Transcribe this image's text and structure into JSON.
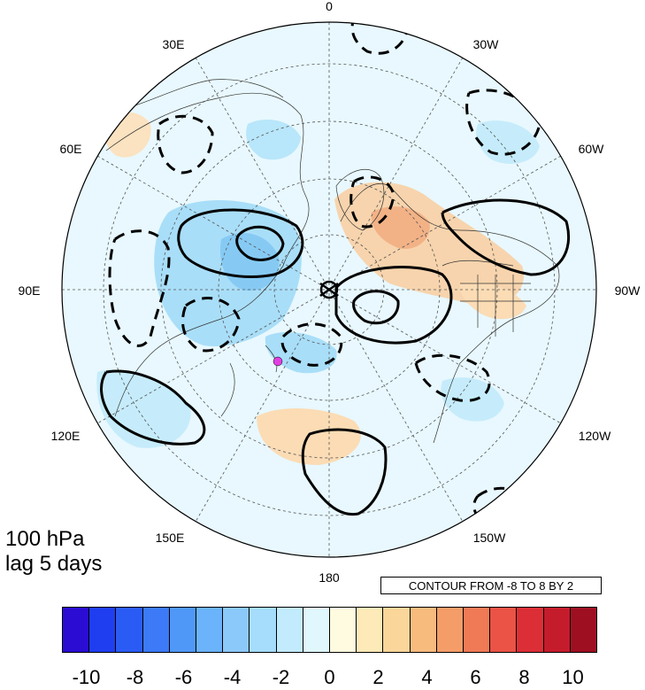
{
  "title": {
    "level": "100 hPa",
    "lag": "lag 5 days"
  },
  "contour_note": "CONTOUR FROM -8 TO 8 BY 2",
  "longitude_labels": [
    {
      "key": "0",
      "text": "0"
    },
    {
      "key": "30E",
      "text": "30E"
    },
    {
      "key": "30W",
      "text": "30W"
    },
    {
      "key": "60E",
      "text": "60E"
    },
    {
      "key": "60W",
      "text": "60W"
    },
    {
      "key": "90E",
      "text": "90E"
    },
    {
      "key": "90W",
      "text": "90W"
    },
    {
      "key": "120E",
      "text": "120E"
    },
    {
      "key": "120W",
      "text": "120W"
    },
    {
      "key": "150E",
      "text": "150E"
    },
    {
      "key": "150W",
      "text": "150W"
    },
    {
      "key": "180",
      "text": "180"
    }
  ],
  "colorbar": {
    "colors": [
      "#2a0cd2",
      "#1f3ef0",
      "#2a5cf5",
      "#3c7af7",
      "#4f98f8",
      "#6bb3fa",
      "#8cc9fb",
      "#a6dcfc",
      "#c2ebfd",
      "#e0f7fe",
      "#fffbe0",
      "#fdeab8",
      "#fbd69a",
      "#f8bb7e",
      "#f59d68",
      "#f07a55",
      "#ea5345",
      "#dc2e36",
      "#c51c2c",
      "#9e0f22"
    ],
    "tick_labels": [
      "-10",
      "-8",
      "-6",
      "-4",
      "-2",
      "0",
      "2",
      "4",
      "6",
      "8",
      "10"
    ]
  },
  "colors": {
    "anomaly_positive": "#f5c9a0",
    "anomaly_negative": "#a9def8",
    "background": "#e8f8fe",
    "marker": "#e040e0"
  }
}
